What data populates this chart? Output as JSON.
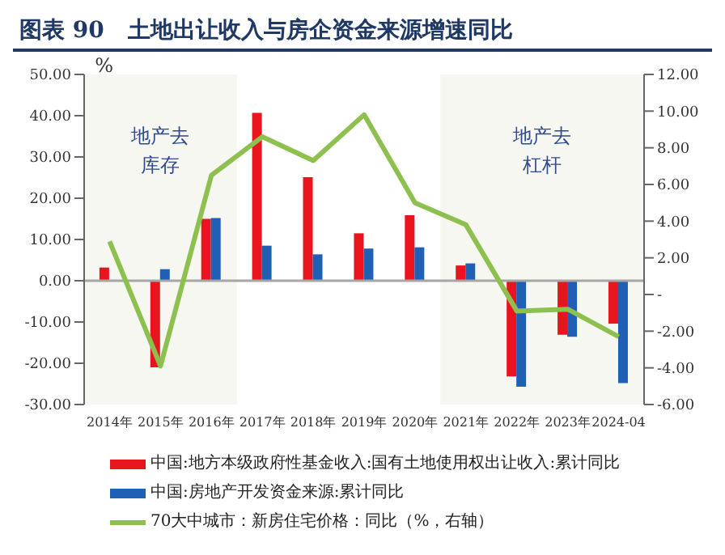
{
  "chart_data": {
    "type": "bar",
    "title": "图表 90   土地出让收入与房企资金来源增速同比",
    "ylabel": "%",
    "categories": [
      "2014年",
      "2015年",
      "2016年",
      "2017年",
      "2018年",
      "2019年",
      "2020年",
      "2021年",
      "2022年",
      "2023年",
      "2024-04"
    ],
    "series": [
      {
        "name": "中国:地方本级政府性基金收入:国有土地使用权出让收入:累计同比",
        "color": "#e8141e",
        "values": [
          3.2,
          -21,
          15,
          40.7,
          25.1,
          11.5,
          15.9,
          3.7,
          -23.2,
          -13.1,
          -10.4
        ]
      },
      {
        "name": "中国:房地产开发资金来源:累计同比",
        "color": "#1f5fb4",
        "values": [
          null,
          2.8,
          15.2,
          8.5,
          6.4,
          7.8,
          8.1,
          4.2,
          -25.7,
          -13.6,
          -24.8
        ]
      },
      {
        "name": "70大中城市：新房住宅价格：同比（%，右轴）",
        "type": "line",
        "axis": "y2",
        "color": "#8dc04f",
        "values": [
          2.9,
          -3.9,
          6.5,
          8.6,
          7.3,
          9.8,
          5.0,
          3.8,
          -0.9,
          -0.8,
          -2.3
        ]
      }
    ],
    "ylim": [
      -30,
      50
    ],
    "yticks": [
      {
        "value": -30,
        "label": "-30.00"
      },
      {
        "value": -20,
        "label": "-20.00"
      },
      {
        "value": -10,
        "label": "-10.00"
      },
      {
        "value": 0,
        "label": "0.00"
      },
      {
        "value": 10,
        "label": "10.00"
      },
      {
        "value": 20,
        "label": "20.00"
      },
      {
        "value": 30,
        "label": "30.00"
      },
      {
        "value": 40,
        "label": "40.00"
      },
      {
        "value": 50,
        "label": "50.00"
      }
    ],
    "y2lim": [
      -6,
      12
    ],
    "y2ticks": [
      {
        "value": -6,
        "label": "-6.00"
      },
      {
        "value": -4,
        "label": "-4.00"
      },
      {
        "value": -2,
        "label": "-2.00"
      },
      {
        "value": 0,
        "label": "-"
      },
      {
        "value": 2,
        "label": "2.00"
      },
      {
        "value": 4,
        "label": "4.00"
      },
      {
        "value": 6,
        "label": "6.00"
      },
      {
        "value": 8,
        "label": "8.00"
      },
      {
        "value": 10,
        "label": "10.00"
      },
      {
        "value": 12,
        "label": "12.00"
      }
    ],
    "bands": [
      {
        "axis": "x",
        "from": "2014年",
        "to": "2016年",
        "label": "地产去库存",
        "color": "#f6f7f1"
      },
      {
        "axis": "x",
        "from": "2021年",
        "to": "2024-04",
        "label": "地产去杠杆",
        "color": "#f6f7f1"
      }
    ],
    "ref_lines": [
      {
        "axis": "y",
        "value": 0,
        "color": "#a6a6a6"
      }
    ],
    "marker": "none",
    "grid": false,
    "legend": "bottom"
  }
}
